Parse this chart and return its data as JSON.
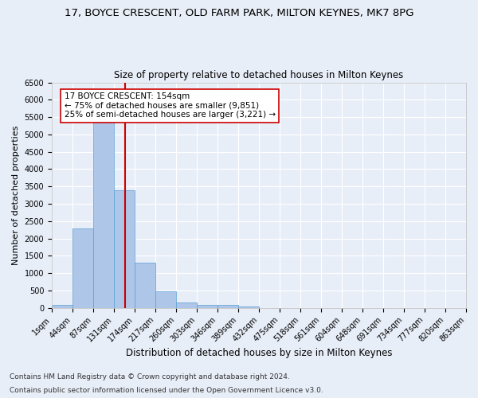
{
  "title": "17, BOYCE CRESCENT, OLD FARM PARK, MILTON KEYNES, MK7 8PG",
  "subtitle": "Size of property relative to detached houses in Milton Keynes",
  "xlabel": "Distribution of detached houses by size in Milton Keynes",
  "ylabel": "Number of detached properties",
  "bar_labels": [
    "1sqm",
    "44sqm",
    "87sqm",
    "131sqm",
    "174sqm",
    "217sqm",
    "260sqm",
    "303sqm",
    "346sqm",
    "389sqm",
    "432sqm",
    "475sqm",
    "518sqm",
    "561sqm",
    "604sqm",
    "648sqm",
    "691sqm",
    "734sqm",
    "777sqm",
    "820sqm",
    "863sqm"
  ],
  "bar_values": [
    80,
    2280,
    5420,
    3380,
    1300,
    480,
    160,
    80,
    80,
    30,
    0,
    0,
    0,
    0,
    0,
    0,
    0,
    0,
    0,
    0
  ],
  "bar_color": "#aec6e8",
  "bar_edge_color": "#5a9fd4",
  "vline_color": "#cc0000",
  "vline_pos": 3.53,
  "annotation_text": "17 BOYCE CRESCENT: 154sqm\n← 75% of detached houses are smaller (9,851)\n25% of semi-detached houses are larger (3,221) →",
  "annotation_box_color": "#ffffff",
  "annotation_box_edge_color": "#cc0000",
  "ylim": [
    0,
    6500
  ],
  "yticks": [
    0,
    500,
    1000,
    1500,
    2000,
    2500,
    3000,
    3500,
    4000,
    4500,
    5000,
    5500,
    6000,
    6500
  ],
  "footer_line1": "Contains HM Land Registry data © Crown copyright and database right 2024.",
  "footer_line2": "Contains public sector information licensed under the Open Government Licence v3.0.",
  "bg_color": "#e8eef8",
  "plot_bg_color": "#e8eef8",
  "grid_color": "#ffffff",
  "title_fontsize": 9.5,
  "subtitle_fontsize": 8.5,
  "xlabel_fontsize": 8.5,
  "ylabel_fontsize": 8,
  "tick_fontsize": 7,
  "annotation_fontsize": 7.5,
  "footer_fontsize": 6.5
}
